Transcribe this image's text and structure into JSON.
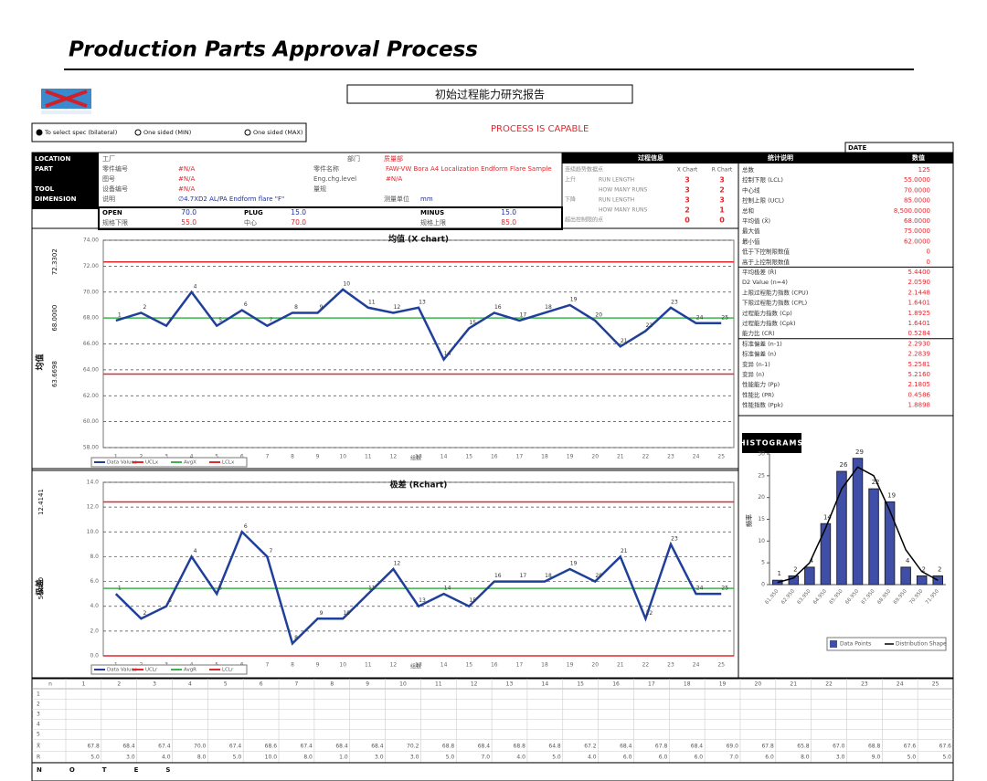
{
  "header": {
    "title": "Production Parts Approval Process",
    "report_title": "初始过程能力研究报告",
    "status": "PROCESS IS CAPABLE",
    "date_label": "DATE",
    "options": [
      "To select spec (bilateral)",
      "One sided (MIN)",
      "One sided (MAX)"
    ]
  },
  "info": {
    "labels": [
      "LOCATION",
      "PART",
      "TOOL",
      "DIMENSION"
    ],
    "fields": [
      {
        "label": "工厂"
      },
      {
        "label": "部门",
        "value": "质量部"
      },
      {
        "label": "零件编号",
        "value": "#N/A"
      },
      {
        "label": "零件名称",
        "value": "FAW-VW Bora A4 Localization Endform Flare Sample"
      },
      {
        "label": "图号",
        "value": "#N/A"
      },
      {
        "label": "Eng.chg.level",
        "value": "#N/A"
      },
      {
        "label": "设备编号",
        "value": "#N/A"
      },
      {
        "label": "量规"
      },
      {
        "label": "说明",
        "value": "∅4.7XD2 AL/PA Endform flare \"F\""
      },
      {
        "label": "测量单位",
        "value": "mm"
      }
    ],
    "specs": [
      {
        "label": "OPEN",
        "value": "70.0"
      },
      {
        "label": "PLUG",
        "value": "15.0"
      },
      {
        "label": "MINUS",
        "value": "15.0"
      },
      {
        "label": "规格下限",
        "value": "55.0"
      },
      {
        "label": "中心",
        "value": "70.0"
      },
      {
        "label": "规格上限",
        "value": "85.0"
      }
    ]
  },
  "process_info": {
    "title": "过程信息",
    "subtitle": "连续趋势数据点",
    "columns": [
      "X Chart",
      "R Chart"
    ],
    "rows": [
      {
        "group": "上升",
        "name": "RUN LENGTH",
        "x": "3",
        "r": "3"
      },
      {
        "name": "HOW MANY RUNS",
        "x": "3",
        "r": "2"
      },
      {
        "group": "下降",
        "name": "RUN LENGTH",
        "x": "3",
        "r": "3"
      },
      {
        "name": "HOW MANY RUNS",
        "x": "2",
        "r": "1"
      },
      {
        "group": "超出控制限的点",
        "x": "0",
        "r": "0"
      }
    ]
  },
  "stats": {
    "title": "统计说明",
    "value_header": "数值",
    "rows": [
      {
        "label": "总数",
        "value": "125"
      },
      {
        "label": "控制下限 (LCL)",
        "value": "55.0000"
      },
      {
        "label": "中心线",
        "value": "70.0000"
      },
      {
        "label": "控制上限 (UCL)",
        "value": "85.0000"
      },
      {
        "label": "总和",
        "value": "8,500.0000"
      },
      {
        "label": "平均值 (X̄)",
        "value": "68.0000"
      },
      {
        "label": "最大值",
        "value": "75.0000"
      },
      {
        "label": "最小值",
        "value": "62.0000"
      },
      {
        "label": "低于下控制限数值",
        "value": "0"
      },
      {
        "label": "高于上控制限数值",
        "value": "0"
      },
      {
        "label": "平均极差 (R̄)",
        "value": "5.4400"
      },
      {
        "label": "D2 Value (n=4)",
        "value": "2.0590"
      },
      {
        "label": "上限过程能力指数 (CPU)",
        "value": "2.1448"
      },
      {
        "label": "下限过程能力指数 (CPL)",
        "value": "1.6401"
      },
      {
        "label": "过程能力指数 (Cp)",
        "value": "1.8925"
      },
      {
        "label": "过程能力指数 (Cpk)",
        "value": "1.6401"
      },
      {
        "label": "能力比 (CR)",
        "value": "0.5284"
      },
      {
        "label": "标准偏差 (n-1)",
        "value": "2.2930"
      },
      {
        "label": "标准偏差 (n)",
        "value": "2.2839"
      },
      {
        "label": "变异 (n-1)",
        "value": "5.2581"
      },
      {
        "label": "变异 (n)",
        "value": "5.2160"
      },
      {
        "label": "性能能力 (Pp)",
        "value": "2.1805"
      },
      {
        "label": "性能比 (PR)",
        "value": "0.4586"
      },
      {
        "label": "性能指数 (Ppk)",
        "value": "1.8898"
      }
    ]
  },
  "chart_data": [
    {
      "type": "line",
      "title": "均值 (X chart)",
      "x_label": "组数",
      "y_label": "均值",
      "categories": [
        "1",
        "2",
        "3",
        "4",
        "5",
        "6",
        "7",
        "8",
        "9",
        "10",
        "11",
        "12",
        "13",
        "14",
        "15",
        "16",
        "17",
        "18",
        "19",
        "20",
        "21",
        "22",
        "23",
        "24",
        "25"
      ],
      "series": [
        {
          "name": "Data Values",
          "color": "#1f3f9a",
          "values": [
            67.8,
            68.4,
            67.4,
            70.0,
            67.4,
            68.6,
            67.4,
            68.4,
            68.4,
            70.2,
            68.8,
            68.4,
            68.8,
            64.8,
            67.2,
            68.4,
            67.8,
            68.4,
            69.0,
            67.8,
            65.8,
            67.0,
            68.8,
            67.6,
            67.6
          ],
          "value_labels": [
            "67.8",
            "68.4",
            "67.4",
            "70.0",
            "67.4",
            "68.6",
            "67.4",
            "68.4",
            "68.4",
            "70.2",
            "68.8",
            "68.4",
            "68.8",
            "64.8",
            "67.2",
            "68.4",
            "67.8",
            "68.4",
            "69.0",
            "67.8",
            "65.8",
            "67.0",
            "68.8",
            "67.6",
            "67.6"
          ]
        }
      ],
      "reference_lines": [
        {
          "name": "UCLx",
          "color": "#e0282e",
          "value": 72.3302,
          "label": "72.3302"
        },
        {
          "name": "AvgX",
          "color": "#3cb44b",
          "value": 68.0,
          "label": "68.0000"
        },
        {
          "name": "LCLx",
          "color": "#e0282e",
          "value": 63.6698,
          "label": "63.6698"
        }
      ],
      "ylim": [
        58,
        74
      ],
      "yticks": [
        {
          "value": 58,
          "label": "58.00"
        },
        {
          "value": 60,
          "label": "60.00"
        },
        {
          "value": 62,
          "label": "62.00"
        },
        {
          "value": 64,
          "label": "64.00"
        },
        {
          "value": 66,
          "label": "66.00"
        },
        {
          "value": 68,
          "label": "68.00"
        },
        {
          "value": 70,
          "label": "70.00"
        },
        {
          "value": 72,
          "label": "72.00"
        },
        {
          "value": 74,
          "label": "74.00"
        }
      ],
      "grid": true
    },
    {
      "type": "line",
      "title": "极差 (Rchart)",
      "x_label": "组数",
      "y_label": "极差",
      "categories": [
        "1",
        "2",
        "3",
        "4",
        "5",
        "6",
        "7",
        "8",
        "9",
        "10",
        "11",
        "12",
        "13",
        "14",
        "15",
        "16",
        "17",
        "18",
        "19",
        "20",
        "21",
        "22",
        "23",
        "24",
        "25"
      ],
      "series": [
        {
          "name": "Data Values",
          "color": "#1f3f9a",
          "values": [
            5,
            3,
            4,
            8,
            5,
            10,
            8,
            1,
            3,
            3,
            5,
            7,
            4,
            5,
            4,
            6,
            6,
            6,
            7,
            6,
            8,
            3,
            9,
            5,
            5
          ],
          "value_labels": [
            "5.0",
            "3.0",
            "4.0",
            "8.0",
            "5.0",
            "10.0",
            "8.0",
            "1.0",
            "3.0",
            "3.0",
            "5.0",
            "7.0",
            "4.0",
            "5.0",
            "4.0",
            "6.0",
            "6.0",
            "6.0",
            "7.0",
            "6.0",
            "8.0",
            "3.0",
            "9.0",
            "5.0",
            "5.0"
          ]
        }
      ],
      "reference_lines": [
        {
          "name": "UCLr",
          "color": "#e0282e",
          "value": 12.4141,
          "label": "12.4141"
        },
        {
          "name": "AvgR",
          "color": "#3cb44b",
          "value": 5.44,
          "label": "5.4400"
        },
        {
          "name": "LCLr",
          "color": "#e0282e",
          "value": 0
        }
      ],
      "ylim": [
        0,
        14
      ],
      "yticks": [
        {
          "value": 0,
          "label": "0.0"
        },
        {
          "value": 2,
          "label": "2.0"
        },
        {
          "value": 4,
          "label": "4.0"
        },
        {
          "value": 6,
          "label": "6.0"
        },
        {
          "value": 8,
          "label": "8.0"
        },
        {
          "value": 10,
          "label": "10.0"
        },
        {
          "value": 12,
          "label": "12.0"
        },
        {
          "value": 14,
          "label": "14.0"
        }
      ],
      "grid": true
    },
    {
      "type": "bar",
      "title": "HISTOGRAMS",
      "y_label": "频率",
      "categories": [
        "61.950",
        "62.950",
        "63.950",
        "64.950",
        "65.950",
        "66.950",
        "67.950",
        "68.950",
        "69.950",
        "70.950",
        "71.950"
      ],
      "series": [
        {
          "name": "Data Points",
          "color": "#3f4fa8",
          "values": [
            1,
            2,
            4,
            14,
            26,
            29,
            22,
            19,
            4,
            2,
            2
          ]
        },
        {
          "name": "Distribution Shape",
          "color": "#000000",
          "values": [
            0.5,
            1.5,
            5,
            13,
            22,
            27,
            25,
            17,
            8,
            3,
            1
          ]
        }
      ],
      "ylim": [
        0,
        30
      ],
      "yticks": [
        0,
        5,
        10,
        15,
        20,
        25,
        30
      ]
    }
  ],
  "table": {
    "header": "n",
    "row_labels": [
      "1",
      "2",
      "3",
      "4",
      "5",
      "X̄",
      "R"
    ],
    "notes": "NOTES"
  }
}
